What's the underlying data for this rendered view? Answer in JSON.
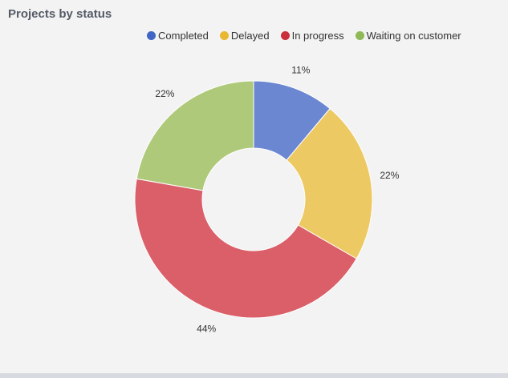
{
  "chart_data": {
    "type": "pie",
    "variant": "donut",
    "title": "Projects by status",
    "legend_position": "top",
    "categories": [
      "Completed",
      "Delayed",
      "In progress",
      "Waiting on customer"
    ],
    "values": [
      11,
      22,
      44,
      22
    ],
    "labels": [
      "11%",
      "22%",
      "44%",
      "22%"
    ],
    "colors": [
      "#6c87d2",
      "#ecc962",
      "#da5f69",
      "#afc97a"
    ],
    "legend_colors": [
      "#3f66c4",
      "#e9b830",
      "#cc2f3c",
      "#8fb957"
    ]
  }
}
